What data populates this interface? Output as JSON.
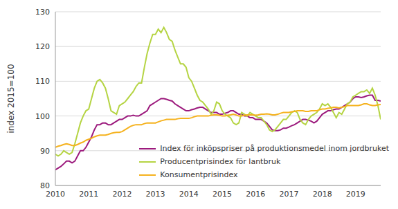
{
  "chart_data": {
    "type": "line",
    "y_label": "index 2015=100",
    "x": [
      2010,
      2010.083,
      2010.167,
      2010.25,
      2010.333,
      2010.417,
      2010.5,
      2010.583,
      2010.667,
      2010.75,
      2010.833,
      2010.917,
      2011,
      2011.083,
      2011.167,
      2011.25,
      2011.333,
      2011.417,
      2011.5,
      2011.583,
      2011.667,
      2011.75,
      2011.833,
      2011.917,
      2012,
      2012.083,
      2012.167,
      2012.25,
      2012.333,
      2012.417,
      2012.5,
      2012.583,
      2012.667,
      2012.75,
      2012.833,
      2012.917,
      2013,
      2013.083,
      2013.167,
      2013.25,
      2013.333,
      2013.417,
      2013.5,
      2013.583,
      2013.667,
      2013.75,
      2013.833,
      2013.917,
      2014,
      2014.083,
      2014.167,
      2014.25,
      2014.333,
      2014.417,
      2014.5,
      2014.583,
      2014.667,
      2014.75,
      2014.833,
      2014.917,
      2015,
      2015.083,
      2015.167,
      2015.25,
      2015.333,
      2015.417,
      2015.5,
      2015.583,
      2015.667,
      2015.75,
      2015.833,
      2015.917,
      2016,
      2016.083,
      2016.167,
      2016.25,
      2016.333,
      2016.417,
      2016.5,
      2016.583,
      2016.667,
      2016.75,
      2016.833,
      2016.917,
      2017,
      2017.083,
      2017.167,
      2017.25,
      2017.333,
      2017.417,
      2017.5,
      2017.583,
      2017.667,
      2017.75,
      2017.833,
      2017.917,
      2018,
      2018.083,
      2018.167,
      2018.25,
      2018.333,
      2018.417,
      2018.5,
      2018.583,
      2018.667,
      2018.75,
      2018.833,
      2018.917,
      2019,
      2019.083,
      2019.167,
      2019.25,
      2019.333,
      2019.417,
      2019.5,
      2019.583,
      2019.667,
      2019.75
    ],
    "series": [
      {
        "name": "Index för inköpspriser på produktionsmedel inom jordbruket",
        "color": "#9c1a7d",
        "values": [
          84.5,
          85,
          85.5,
          86.2,
          87,
          87,
          86.5,
          87,
          88.5,
          90,
          90,
          91,
          92.5,
          94,
          96,
          97.5,
          97.5,
          98,
          98,
          97.5,
          97.5,
          98,
          98.5,
          99,
          99,
          99.5,
          100,
          100,
          100.2,
          100,
          100,
          100.5,
          101,
          101.5,
          103,
          103.5,
          104,
          104.5,
          105,
          105,
          104.8,
          104.5,
          104.3,
          103.5,
          103,
          102.5,
          102,
          101.5,
          101.5,
          101.8,
          102,
          102.3,
          102.5,
          102.5,
          102,
          101.5,
          101,
          101,
          101,
          100.5,
          100.5,
          100.8,
          101,
          101.5,
          101.5,
          101,
          100.5,
          100.5,
          100,
          100,
          99.5,
          99.5,
          99,
          99,
          99,
          98.5,
          98,
          97,
          96,
          95.8,
          95.8,
          96,
          96.5,
          96.5,
          96.8,
          97.2,
          97.5,
          98,
          98.5,
          99,
          99,
          98.8,
          98.5,
          98,
          98.5,
          99.5,
          100.5,
          101,
          101.5,
          101.5,
          101.8,
          102,
          102,
          102.5,
          103,
          103.5,
          104,
          105,
          105.5,
          105.5,
          105.3,
          105.5,
          105.8,
          106,
          106,
          104.5,
          104.5,
          104.3
        ]
      },
      {
        "name": "Producentprisindex för lantbruk",
        "color": "#b5d443",
        "values": [
          89,
          88.5,
          89,
          90,
          89.5,
          89,
          89.5,
          92,
          95,
          98,
          100,
          101.5,
          102,
          105,
          108,
          110,
          110.5,
          109.5,
          108,
          105,
          101.5,
          101,
          100.5,
          103,
          103.5,
          104,
          105,
          106,
          107,
          108.5,
          109.5,
          109.5,
          114,
          118,
          121,
          123.5,
          123.5,
          125,
          124,
          125.5,
          124,
          122,
          121.5,
          119,
          117,
          115,
          115,
          114,
          111,
          110,
          108,
          106,
          104.5,
          104,
          103,
          102,
          100.5,
          101.5,
          104,
          103.5,
          101.5,
          100.5,
          100,
          99.5,
          98,
          97.5,
          98,
          101,
          100.5,
          100,
          101,
          100.5,
          100,
          99.5,
          99.5,
          98.5,
          97.5,
          96,
          95.5,
          96,
          97,
          98,
          99,
          99,
          100,
          101,
          101.5,
          101,
          99,
          98,
          97.5,
          99,
          100,
          100.5,
          101,
          102,
          103.5,
          103,
          103.5,
          102.5,
          101,
          99.5,
          101,
          100.5,
          102,
          103.5,
          104,
          105.5,
          106,
          106.5,
          107,
          107,
          107.5,
          106.5,
          108,
          106,
          103,
          99
        ]
      },
      {
        "name": "Konsumentprisindex",
        "color": "#f5b21e",
        "values": [
          91,
          91.3,
          91.5,
          91.8,
          92,
          91.8,
          91.5,
          91.5,
          91.8,
          92.2,
          92.5,
          93,
          93.3,
          93.6,
          94,
          94.3,
          94.5,
          94.5,
          94.5,
          94.7,
          95,
          95.2,
          95.3,
          95.3,
          95.5,
          96,
          96.5,
          97,
          97.3,
          97.5,
          97.5,
          97.5,
          97.8,
          98,
          98,
          98,
          98,
          98.3,
          98.6,
          98.8,
          99,
          99,
          99,
          99,
          99.2,
          99.3,
          99.3,
          99.3,
          99.3,
          99.5,
          99.8,
          100,
          100,
          100,
          100,
          100,
          100.2,
          100.3,
          100.3,
          100.2,
          100,
          100,
          100.2,
          100.3,
          100.5,
          100.3,
          100,
          100,
          100.2,
          100.3,
          100.3,
          100.3,
          100.2,
          100.3,
          100.5,
          100.5,
          100.6,
          100.5,
          100.3,
          100.3,
          100.5,
          100.8,
          101,
          101,
          101,
          101.2,
          101.3,
          101.5,
          101.5,
          101.5,
          101.3,
          101.3,
          101.5,
          101.5,
          101.5,
          101.8,
          102,
          102,
          102.2,
          102.3,
          102.5,
          102.5,
          102.3,
          102.5,
          102.7,
          103,
          103,
          103,
          103,
          103,
          103.2,
          103.5,
          103.5,
          103.2,
          103,
          103,
          103.2,
          103.3
        ]
      }
    ],
    "xlim": [
      2010,
      2019.75
    ],
    "xticks": [
      2010,
      2011,
      2012,
      2013,
      2014,
      2015,
      2016,
      2017,
      2018,
      2019
    ],
    "ylim": [
      80,
      130
    ],
    "yticks": [
      80,
      90,
      100,
      110,
      120,
      130
    ],
    "grid": true,
    "legend": "lower right"
  }
}
